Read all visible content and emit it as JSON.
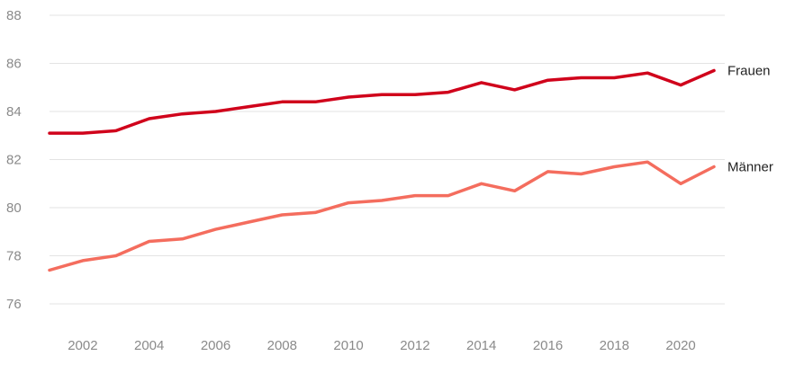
{
  "chart_data": {
    "type": "line",
    "title": "",
    "xlabel": "",
    "ylabel": "",
    "x": [
      2001,
      2002,
      2003,
      2004,
      2005,
      2006,
      2007,
      2008,
      2009,
      2010,
      2011,
      2012,
      2013,
      2014,
      2015,
      2016,
      2017,
      2018,
      2019,
      2020,
      2021
    ],
    "xticks": [
      "2002",
      "2004",
      "2006",
      "2008",
      "2010",
      "2012",
      "2014",
      "2016",
      "2018",
      "2020"
    ],
    "yticks": [
      "76",
      "78",
      "80",
      "82",
      "84",
      "86",
      "88"
    ],
    "ylim": [
      75,
      88
    ],
    "grid": true,
    "series": [
      {
        "name": "Frauen",
        "color": "#d0021b",
        "values": [
          83.1,
          83.1,
          83.2,
          83.7,
          83.9,
          84.0,
          84.2,
          84.4,
          84.4,
          84.6,
          84.7,
          84.7,
          84.8,
          85.2,
          84.9,
          85.3,
          85.4,
          85.4,
          85.6,
          85.1,
          85.7
        ]
      },
      {
        "name": "Männer",
        "color": "#f46d5e",
        "values": [
          77.4,
          77.8,
          78.0,
          78.6,
          78.7,
          79.1,
          79.4,
          79.7,
          79.8,
          80.2,
          80.3,
          80.5,
          80.5,
          81.0,
          80.7,
          81.5,
          81.4,
          81.7,
          81.9,
          81.0,
          81.7
        ]
      }
    ]
  }
}
